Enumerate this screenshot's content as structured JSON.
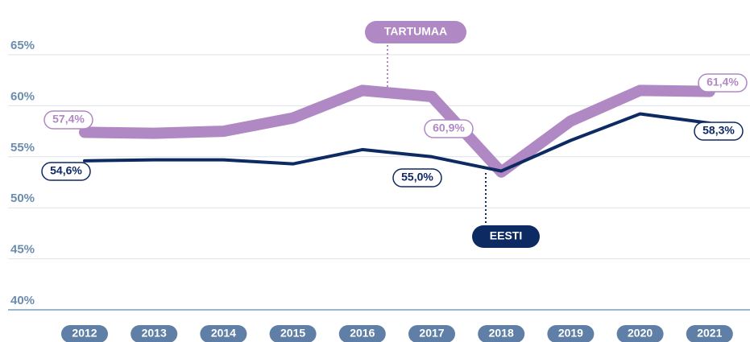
{
  "chart_data": {
    "type": "line",
    "categories": [
      "2012",
      "2013",
      "2014",
      "2015",
      "2016",
      "2017",
      "2018",
      "2019",
      "2020",
      "2021"
    ],
    "series": [
      {
        "name": "TARTUMAA",
        "color": "#b088c4",
        "values": [
          57.4,
          57.3,
          57.5,
          58.8,
          61.5,
          60.9,
          53.5,
          58.5,
          61.5,
          61.4
        ],
        "value_labels": [
          "57,4%",
          null,
          null,
          null,
          null,
          "60,9%",
          null,
          null,
          null,
          "61,4%"
        ]
      },
      {
        "name": "EESTI",
        "color": "#0d2a63",
        "values": [
          54.6,
          54.7,
          54.7,
          54.3,
          55.7,
          55.0,
          53.6,
          56.6,
          59.2,
          58.3
        ],
        "value_labels": [
          "54,6%",
          null,
          null,
          null,
          null,
          "55,0%",
          null,
          null,
          null,
          "58,3%"
        ]
      }
    ],
    "ylim": [
      40,
      65
    ],
    "yticks": [
      {
        "value": 40,
        "label": "40%"
      },
      {
        "value": 45,
        "label": "45%"
      },
      {
        "value": 50,
        "label": "50%"
      },
      {
        "value": 55,
        "label": "55%"
      },
      {
        "value": 60,
        "label": "60%"
      },
      {
        "value": 65,
        "label": "65%"
      }
    ],
    "grid": true
  }
}
